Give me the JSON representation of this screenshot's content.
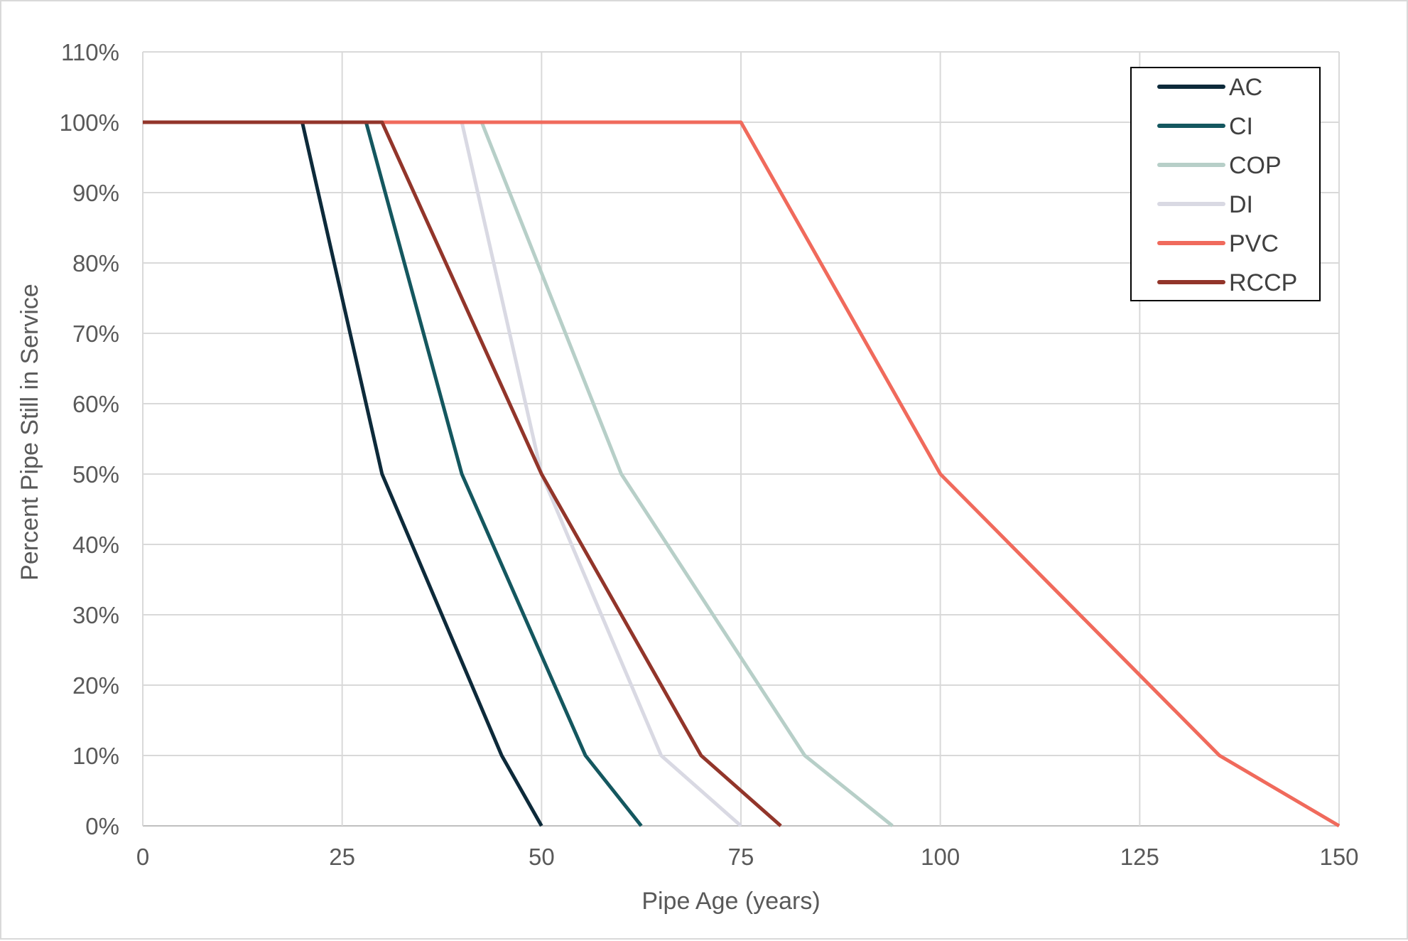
{
  "chart_data": {
    "type": "line",
    "title": "",
    "xlabel": "Pipe Age (years)",
    "ylabel": "Percent Pipe Still in Service",
    "xlim": [
      0,
      150
    ],
    "ylim": [
      0,
      110
    ],
    "x_ticks": [
      "0",
      "25",
      "50",
      "75",
      "100",
      "125",
      "150"
    ],
    "y_ticks": [
      "0%",
      "10%",
      "20%",
      "30%",
      "40%",
      "50%",
      "60%",
      "70%",
      "80%",
      "90%",
      "100%",
      "110%"
    ],
    "grid": true,
    "legend_position": "top-right",
    "series": [
      {
        "name": "AC",
        "color": "#0d2a3a",
        "points": [
          [
            0,
            100
          ],
          [
            20,
            100
          ],
          [
            30,
            50
          ],
          [
            45,
            10
          ],
          [
            50,
            0
          ]
        ]
      },
      {
        "name": "CI",
        "color": "#14575f",
        "points": [
          [
            0,
            100
          ],
          [
            28,
            100
          ],
          [
            40,
            50
          ],
          [
            55.5,
            10
          ],
          [
            62.5,
            0
          ]
        ]
      },
      {
        "name": "COP",
        "color": "#b7cfc8",
        "points": [
          [
            0,
            100
          ],
          [
            42.5,
            100
          ],
          [
            60,
            50
          ],
          [
            83,
            10
          ],
          [
            94,
            0
          ]
        ]
      },
      {
        "name": "DI",
        "color": "#d9d9e3",
        "points": [
          [
            0,
            100
          ],
          [
            40,
            100
          ],
          [
            50,
            50
          ],
          [
            65,
            10
          ],
          [
            75,
            0
          ]
        ]
      },
      {
        "name": "PVC",
        "color": "#f06a5c",
        "points": [
          [
            0,
            100
          ],
          [
            75,
            100
          ],
          [
            100,
            50
          ],
          [
            135,
            10
          ],
          [
            150,
            0
          ]
        ]
      },
      {
        "name": "RCCP",
        "color": "#92352a",
        "points": [
          [
            0,
            100
          ],
          [
            30,
            100
          ],
          [
            50,
            50
          ],
          [
            70,
            10
          ],
          [
            80,
            0
          ]
        ]
      }
    ]
  }
}
